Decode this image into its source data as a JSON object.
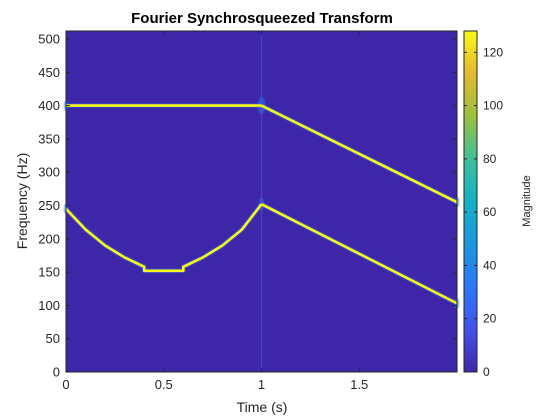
{
  "chart_data": {
    "type": "heatmap",
    "title": "Fourier Synchrosqueezed Transform",
    "xlabel": "Time (s)",
    "ylabel": "Frequency (Hz)",
    "xlim": [
      0,
      2
    ],
    "ylim": [
      0,
      512
    ],
    "x_ticks": [
      0,
      0.5,
      1,
      1.5
    ],
    "x_tick_labels": [
      "0",
      "0.5",
      "1",
      "1.5"
    ],
    "y_ticks": [
      0,
      50,
      100,
      150,
      200,
      250,
      300,
      350,
      400,
      450,
      500
    ],
    "y_tick_labels": [
      "0",
      "50",
      "100",
      "150",
      "200",
      "250",
      "300",
      "350",
      "400",
      "450",
      "500"
    ],
    "background_value": 0,
    "colorbar": {
      "label": "Magnitude",
      "limits": [
        0,
        128
      ],
      "ticks": [
        0,
        20,
        40,
        60,
        80,
        100,
        120
      ],
      "tick_labels": [
        "0",
        "20",
        "40",
        "60",
        "80",
        "100",
        "120"
      ],
      "colormap": "parula"
    },
    "series": [
      {
        "magnitude": 128,
        "points": [
          [
            0,
            400
          ],
          [
            1,
            400
          ]
        ]
      },
      {
        "magnitude": 128,
        "points": [
          [
            1,
            400
          ],
          [
            2,
            255
          ]
        ]
      },
      {
        "magnitude": 128,
        "points": [
          [
            0,
            245
          ],
          [
            0.1,
            214
          ],
          [
            0.2,
            190
          ],
          [
            0.3,
            172
          ],
          [
            0.4,
            158
          ],
          [
            0.4,
            152
          ],
          [
            0.6,
            152
          ],
          [
            0.6,
            158
          ],
          [
            0.7,
            172
          ],
          [
            0.8,
            190
          ],
          [
            0.9,
            214
          ],
          [
            1,
            252
          ]
        ]
      },
      {
        "magnitude": 128,
        "points": [
          [
            1,
            252
          ],
          [
            2,
            103
          ]
        ]
      }
    ]
  }
}
